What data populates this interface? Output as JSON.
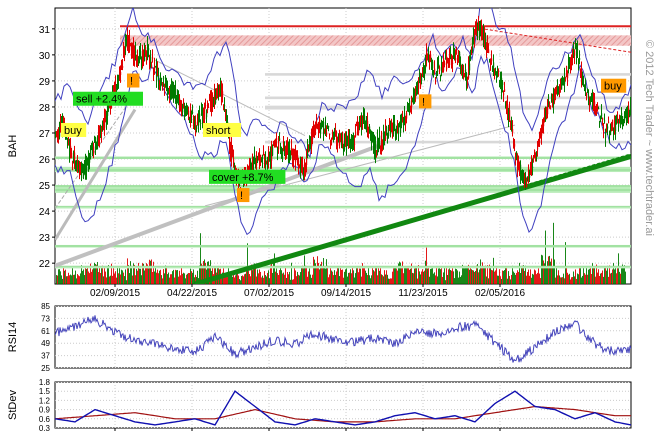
{
  "watermark": "© 2012 Tech Trader ~ www.techtrader.ai",
  "colors": {
    "up": "#e00000",
    "down": "#007a00",
    "band": "#4040c0",
    "rsi": "#4444bb",
    "stdev_fast": "#1010b0",
    "stdev_slow": "#a01010",
    "resistance": "#dd2222",
    "support_zone": "#88dd88",
    "trend": "#118811"
  },
  "chart_data": [
    {
      "type": "line",
      "panel": "price",
      "ylabel": "BAH",
      "ylim": [
        21.2,
        31.8
      ],
      "yticks": [
        22,
        23,
        24,
        25,
        26,
        27,
        28,
        29,
        30,
        31
      ],
      "xlabels": [
        "02/09/2015",
        "04/22/2015",
        "07/02/2015",
        "09/14/2015",
        "11/23/2015",
        "02/05/2016"
      ],
      "x_start": "2015-07-01",
      "price_path": [
        [
          0,
          27.0
        ],
        [
          8,
          27.3
        ],
        [
          16,
          26.2
        ],
        [
          26,
          25.4
        ],
        [
          40,
          26.6
        ],
        [
          52,
          27.8
        ],
        [
          64,
          29.3
        ],
        [
          72,
          30.6
        ],
        [
          82,
          29.8
        ],
        [
          92,
          30.1
        ],
        [
          104,
          29.0
        ],
        [
          116,
          28.6
        ],
        [
          128,
          28.0
        ],
        [
          140,
          27.4
        ],
        [
          152,
          27.9
        ],
        [
          160,
          28.4
        ],
        [
          166,
          28.6
        ],
        [
          172,
          27.2
        ],
        [
          180,
          25.4
        ],
        [
          186,
          25.0
        ],
        [
          196,
          25.8
        ],
        [
          206,
          26.0
        ],
        [
          214,
          25.9
        ],
        [
          220,
          26.6
        ],
        [
          228,
          26.4
        ],
        [
          236,
          26.2
        ],
        [
          248,
          25.6
        ],
        [
          260,
          27.4
        ],
        [
          272,
          27.0
        ],
        [
          284,
          26.7
        ],
        [
          296,
          26.6
        ],
        [
          308,
          27.6
        ],
        [
          320,
          26.4
        ],
        [
          332,
          27.1
        ],
        [
          344,
          27.2
        ],
        [
          356,
          28.1
        ],
        [
          366,
          29.1
        ],
        [
          372,
          30.1
        ],
        [
          380,
          29.2
        ],
        [
          390,
          29.7
        ],
        [
          402,
          30.0
        ],
        [
          412,
          29.1
        ],
        [
          420,
          31.1
        ],
        [
          428,
          30.8
        ],
        [
          436,
          29.6
        ],
        [
          446,
          28.9
        ],
        [
          454,
          27.6
        ],
        [
          462,
          25.8
        ],
        [
          470,
          25.1
        ],
        [
          480,
          26.2
        ],
        [
          490,
          27.8
        ],
        [
          500,
          28.5
        ],
        [
          512,
          29.4
        ],
        [
          520,
          30.3
        ],
        [
          530,
          28.6
        ],
        [
          540,
          28.0
        ],
        [
          550,
          27.1
        ],
        [
          560,
          27.3
        ],
        [
          568,
          27.6
        ],
        [
          576,
          28.0
        ]
      ],
      "volume_profile": [
        0.2,
        0.3,
        0.5,
        0.3,
        0.2,
        0.4,
        0.6,
        0.3,
        0.2,
        0.3,
        0.7,
        0.3,
        0.2,
        0.4,
        0.3,
        0.5,
        0.2,
        0.3,
        0.8,
        0.3,
        0.2,
        0.4,
        0.3,
        0.2,
        0.5,
        0.3,
        0.4,
        0.2,
        0.3,
        0.6,
        0.3,
        0.2,
        0.4,
        0.3,
        0.9,
        0.3,
        0.2,
        0.4,
        0.3,
        0.5
      ],
      "resistance_levels": [
        31.1,
        30.5
      ],
      "support_levels": [
        24.9,
        24.1
      ],
      "trendline_thick": {
        "from": [
          140,
          21.2
        ],
        "to": [
          576,
          26.1
        ]
      },
      "annotations": [
        {
          "text": "buy",
          "x": 6,
          "y": 27.0,
          "bg": "#ffff44"
        },
        {
          "text": "sell +2.4%",
          "x": 18,
          "y": 28.2,
          "bg": "#22dd22"
        },
        {
          "text": "!",
          "x": 72,
          "y": 28.9,
          "bg": "#ff9900"
        },
        {
          "text": "short",
          "x": 148,
          "y": 27.0,
          "bg": "#ffff44"
        },
        {
          "text": "cover +8.7%",
          "x": 154,
          "y": 25.2,
          "bg": "#22dd22"
        },
        {
          "text": "!",
          "x": 182,
          "y": 24.5,
          "bg": "#ff9900"
        },
        {
          "text": "!",
          "x": 364,
          "y": 28.1,
          "bg": "#ff9900"
        },
        {
          "text": "buy",
          "x": 546,
          "y": 28.7,
          "bg": "#ff9900"
        }
      ]
    },
    {
      "type": "line",
      "panel": "rsi",
      "ylabel": "RSI14",
      "ylim": [
        25,
        85
      ],
      "yticks": [
        25,
        37,
        49,
        61,
        73,
        85
      ],
      "path": [
        [
          0,
          58
        ],
        [
          20,
          66
        ],
        [
          40,
          72
        ],
        [
          60,
          60
        ],
        [
          80,
          52
        ],
        [
          100,
          48
        ],
        [
          120,
          44
        ],
        [
          140,
          40
        ],
        [
          160,
          56
        ],
        [
          180,
          38
        ],
        [
          200,
          45
        ],
        [
          220,
          52
        ],
        [
          240,
          48
        ],
        [
          260,
          58
        ],
        [
          280,
          52
        ],
        [
          300,
          50
        ],
        [
          320,
          54
        ],
        [
          340,
          48
        ],
        [
          360,
          62
        ],
        [
          380,
          58
        ],
        [
          400,
          64
        ],
        [
          420,
          66
        ],
        [
          440,
          50
        ],
        [
          460,
          32
        ],
        [
          480,
          45
        ],
        [
          500,
          60
        ],
        [
          520,
          68
        ],
        [
          540,
          48
        ],
        [
          560,
          40
        ],
        [
          576,
          44
        ]
      ]
    },
    {
      "type": "line",
      "panel": "stdev",
      "ylabel": "StDev",
      "ylim": [
        0.3,
        1.8
      ],
      "yticks": [
        0.3,
        0.6,
        0.9,
        1.2,
        1.5,
        1.8
      ],
      "fast": [
        [
          0,
          0.6
        ],
        [
          20,
          0.5
        ],
        [
          40,
          0.9
        ],
        [
          60,
          0.7
        ],
        [
          80,
          0.5
        ],
        [
          100,
          0.4
        ],
        [
          120,
          0.5
        ],
        [
          140,
          0.6
        ],
        [
          160,
          0.4
        ],
        [
          180,
          1.5
        ],
        [
          200,
          1.0
        ],
        [
          220,
          0.5
        ],
        [
          240,
          0.4
        ],
        [
          260,
          0.6
        ],
        [
          280,
          0.5
        ],
        [
          300,
          0.4
        ],
        [
          320,
          0.5
        ],
        [
          340,
          0.7
        ],
        [
          360,
          0.8
        ],
        [
          380,
          0.6
        ],
        [
          400,
          0.7
        ],
        [
          420,
          0.5
        ],
        [
          440,
          1.1
        ],
        [
          460,
          1.5
        ],
        [
          480,
          1.0
        ],
        [
          500,
          0.9
        ],
        [
          520,
          0.6
        ],
        [
          540,
          0.8
        ],
        [
          560,
          0.5
        ],
        [
          576,
          0.4
        ]
      ],
      "slow": [
        [
          0,
          0.6
        ],
        [
          40,
          0.7
        ],
        [
          80,
          0.8
        ],
        [
          120,
          0.6
        ],
        [
          160,
          0.6
        ],
        [
          200,
          0.9
        ],
        [
          240,
          0.6
        ],
        [
          280,
          0.5
        ],
        [
          320,
          0.5
        ],
        [
          360,
          0.6
        ],
        [
          400,
          0.6
        ],
        [
          440,
          0.8
        ],
        [
          480,
          1.0
        ],
        [
          520,
          0.9
        ],
        [
          560,
          0.7
        ],
        [
          576,
          0.7
        ]
      ]
    }
  ]
}
